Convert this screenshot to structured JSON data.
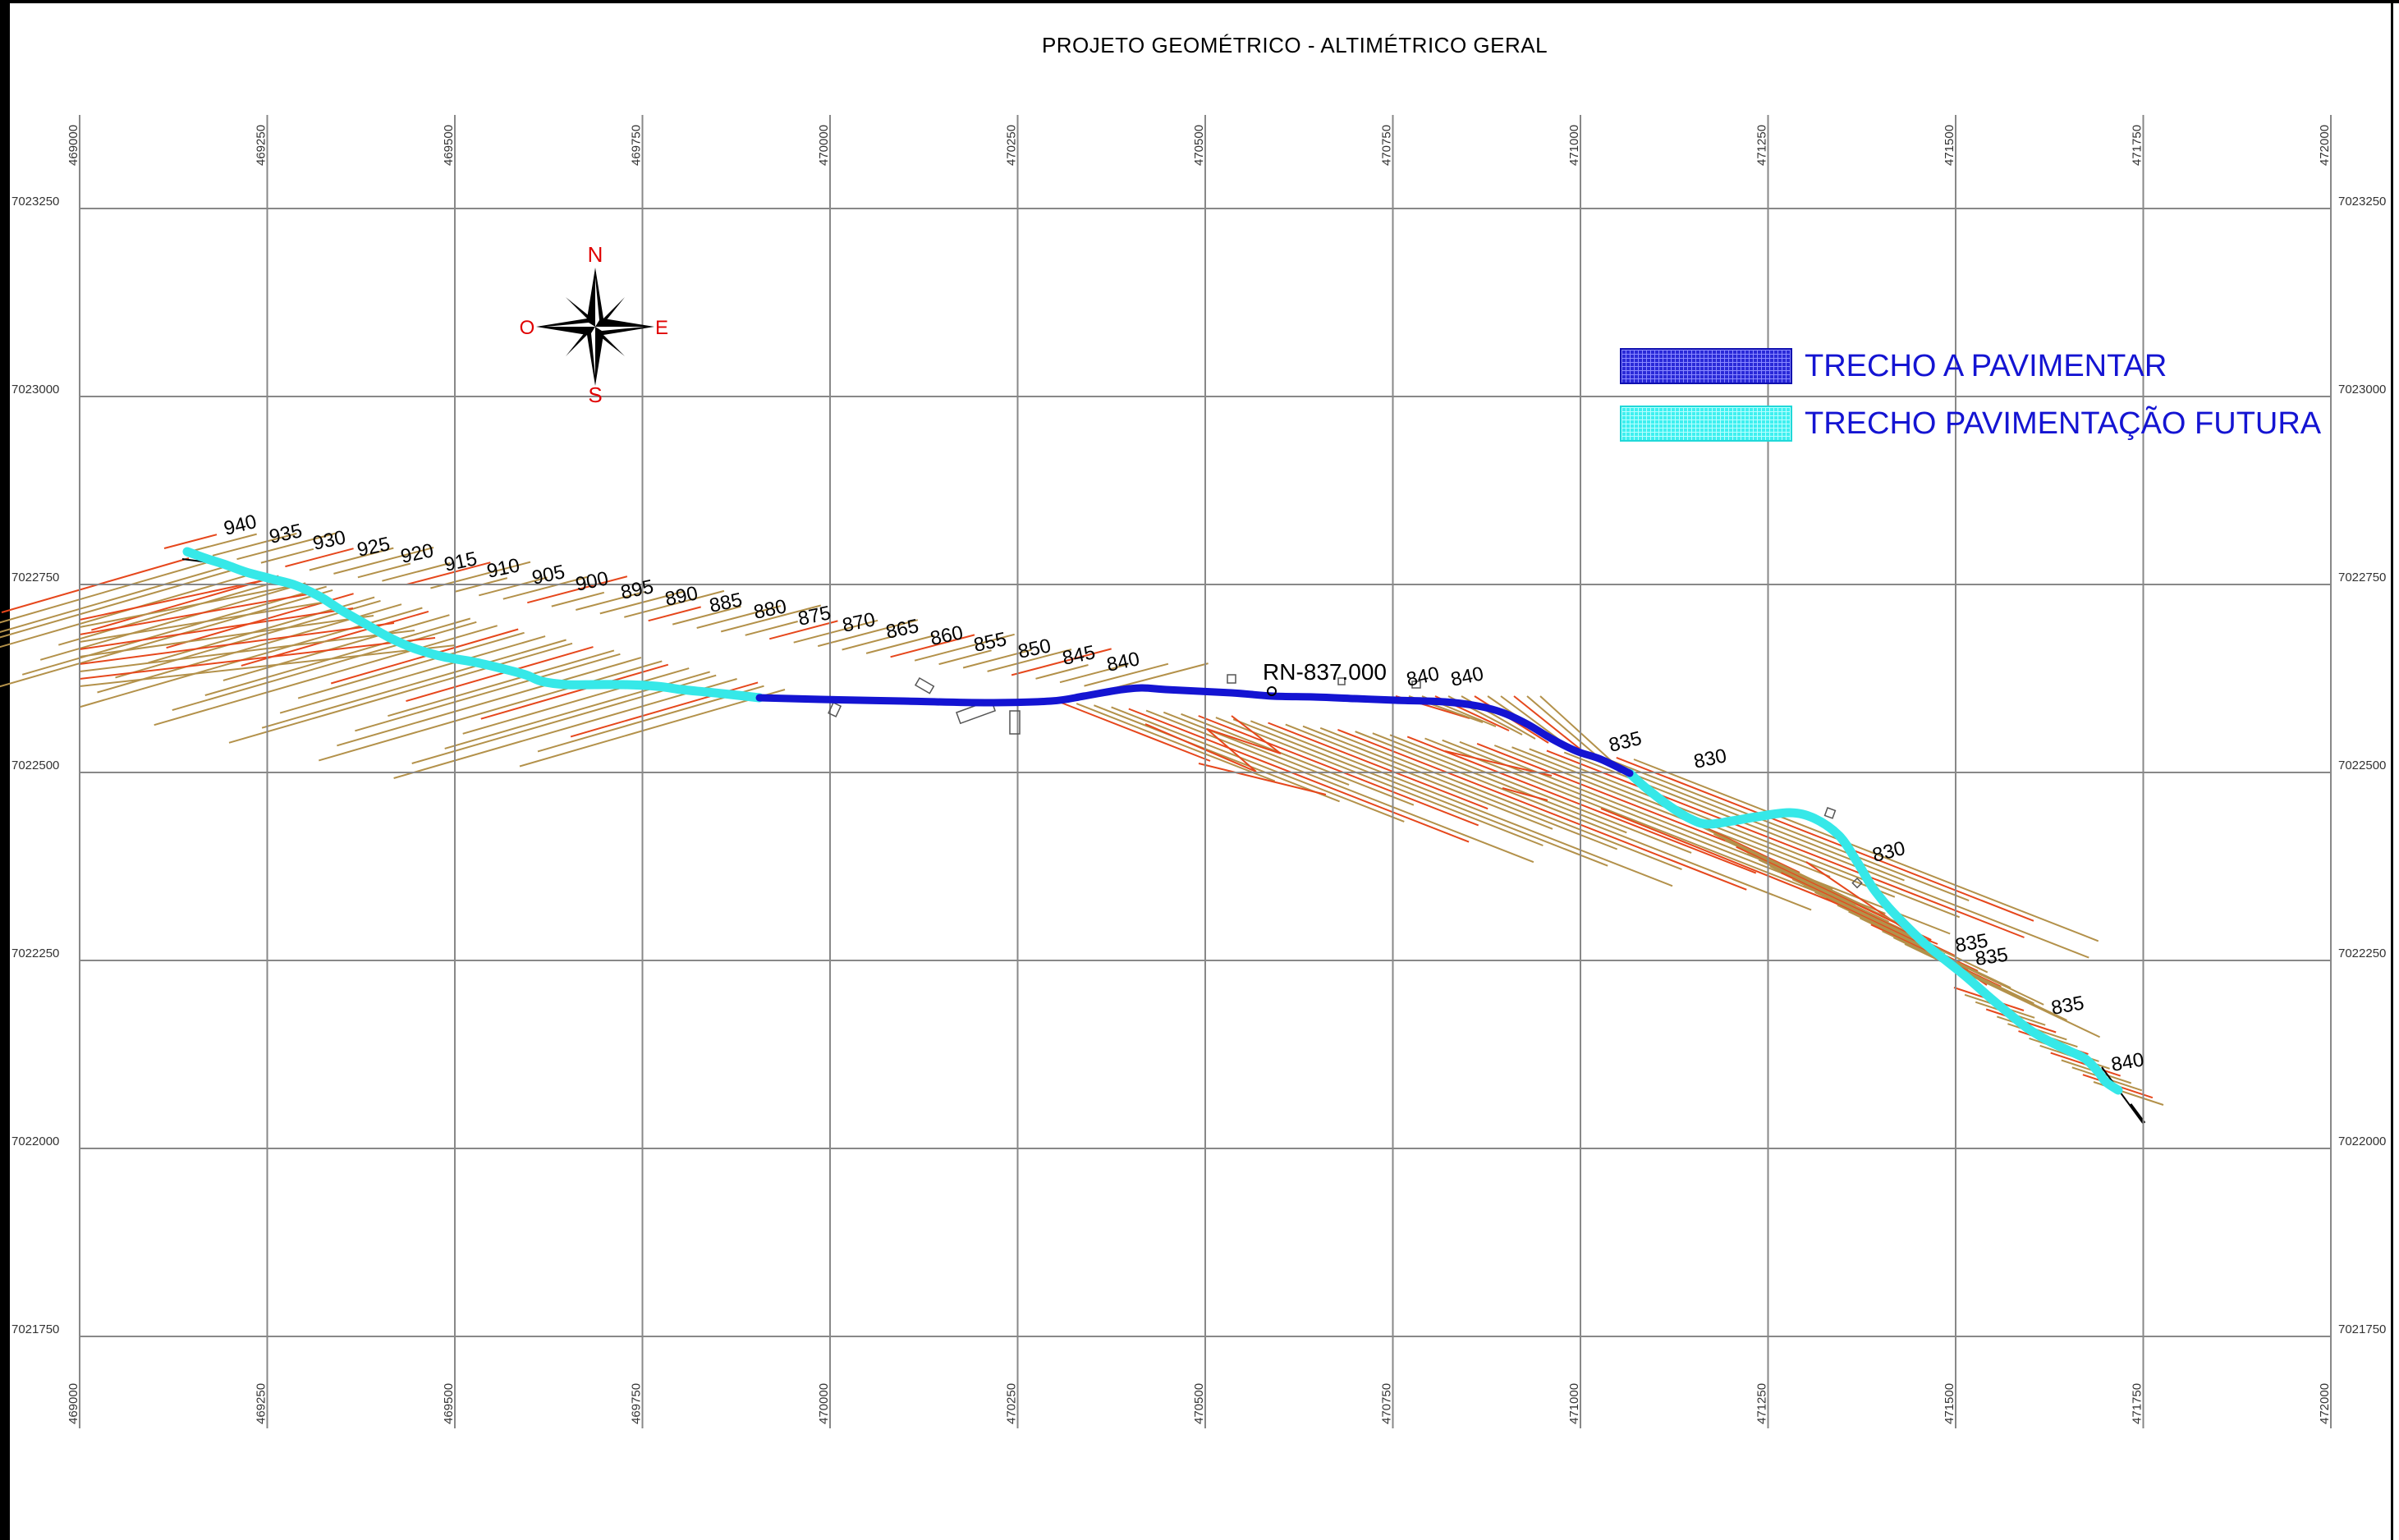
{
  "title": "PROJETO GEOMÉTRICO - ALTIMÉTRICO GERAL",
  "compass": {
    "north": "N",
    "south": "S",
    "east": "E",
    "west": "O"
  },
  "legend": [
    {
      "label": "TRECHO A PAVIMENTAR",
      "color": "#1414d2",
      "pattern": "blue-grid"
    },
    {
      "label": "TRECHO PAVIMENTAÇÃO FUTURA",
      "color": "#36e8e8",
      "pattern": "cyan-grid"
    }
  ],
  "grid": {
    "eastings": [
      "469000",
      "469250",
      "469500",
      "469750",
      "470000",
      "470250",
      "470500",
      "470750",
      "471000",
      "471250",
      "471500",
      "471750",
      "472000"
    ],
    "northings": [
      "7023250",
      "7023000",
      "7022750",
      "7022500",
      "7022250",
      "7022000",
      "7021750"
    ]
  },
  "benchmark": "RN-837.000",
  "contour_labels": [
    "940",
    "935",
    "930",
    "925",
    "920",
    "915",
    "910",
    "905",
    "900",
    "895",
    "890",
    "885",
    "880",
    "875",
    "870",
    "865",
    "860",
    "855",
    "850",
    "845",
    "840",
    "840",
    "840",
    "835",
    "830",
    "830",
    "835",
    "835",
    "835",
    "840"
  ],
  "colors": {
    "contour_major": "#e6471c",
    "contour_minor": "#b3914a",
    "paved": "#1414d2",
    "future": "#36e8e8",
    "grid": "#888888"
  }
}
